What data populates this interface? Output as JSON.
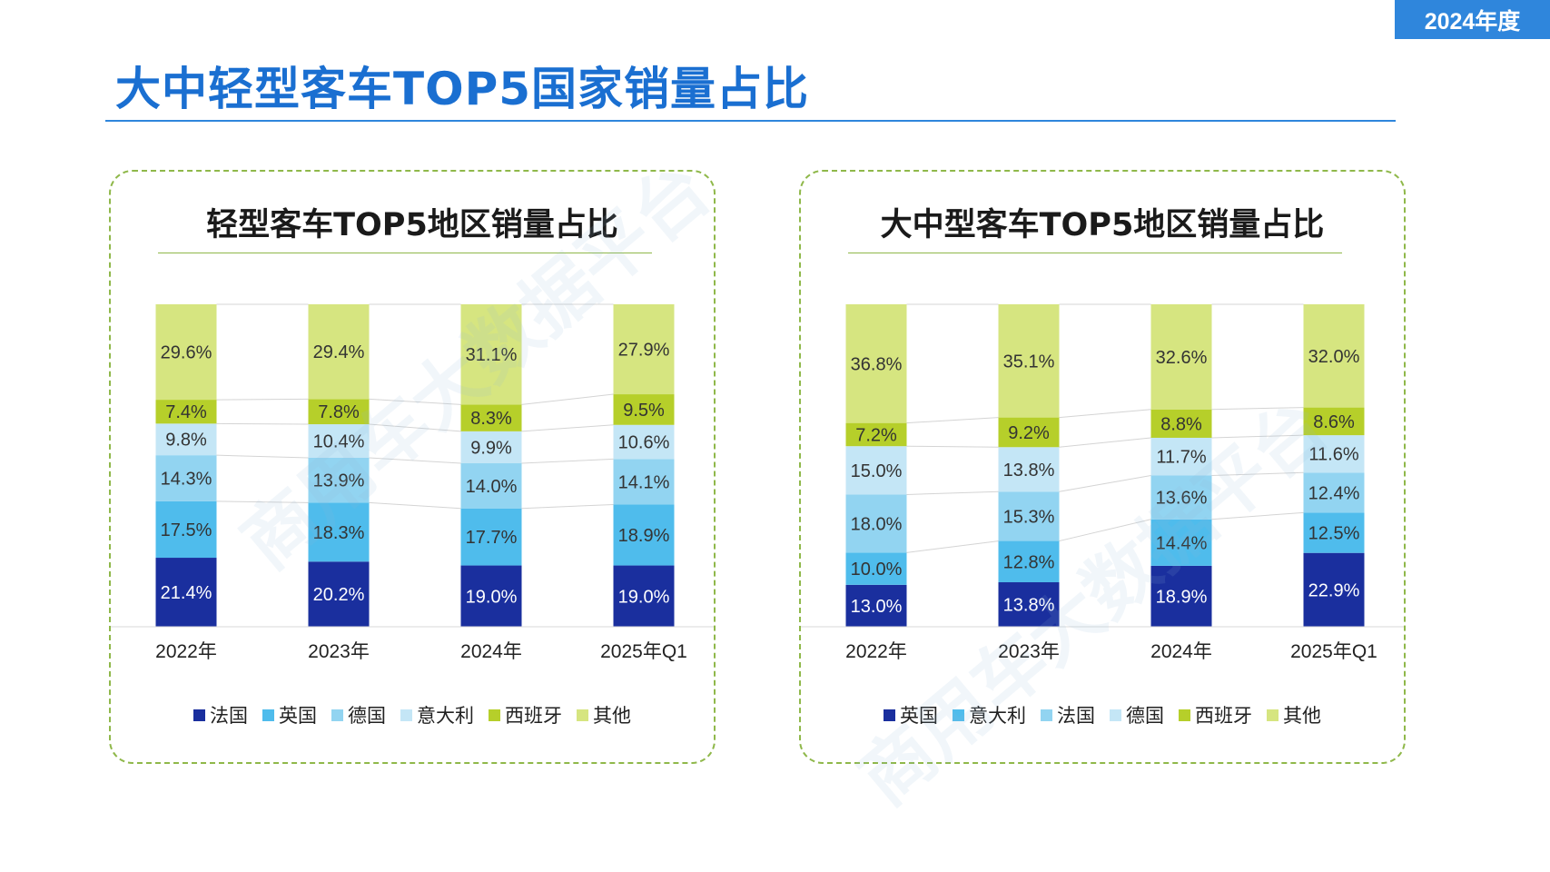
{
  "badge": {
    "year": "2024年度"
  },
  "page": {
    "title": "大中轻型客车TOP5国家销量占比"
  },
  "watermark": {
    "text": "商用车大数据平台"
  },
  "chart_data": [
    {
      "type": "bar",
      "stacked": true,
      "title": "轻型客车TOP5地区销量占比",
      "categories": [
        "2022年",
        "2023年",
        "2024年",
        "2025年Q1"
      ],
      "ylim": [
        0,
        100
      ],
      "series": [
        {
          "name": "法国",
          "color": "#1a2f9e",
          "values": [
            21.4,
            20.2,
            19.0,
            19.0
          ]
        },
        {
          "name": "英国",
          "color": "#4fbcec",
          "values": [
            17.5,
            18.3,
            17.7,
            18.9
          ]
        },
        {
          "name": "德国",
          "color": "#92d4f1",
          "values": [
            14.3,
            13.9,
            14.0,
            14.1
          ]
        },
        {
          "name": "意大利",
          "color": "#c4e6f6",
          "values": [
            9.8,
            10.4,
            9.9,
            10.6
          ]
        },
        {
          "name": "西班牙",
          "color": "#b6cf2a",
          "values": [
            7.4,
            7.8,
            8.3,
            9.5
          ]
        },
        {
          "name": "其他",
          "color": "#d6e580",
          "values": [
            29.6,
            29.4,
            31.1,
            27.9
          ]
        }
      ],
      "value_labels": [
        [
          "21.4%",
          "20.2%",
          "19.0%",
          "19.0%"
        ],
        [
          "17.5%",
          "18.3%",
          "17.7%",
          "18.9%"
        ],
        [
          "14.3%",
          "13.9%",
          "14.0%",
          "14.1%"
        ],
        [
          "9.8%",
          "10.4%",
          "9.9%",
          "10.6%"
        ],
        [
          "7.4%",
          "7.8%",
          "8.3%",
          "9.5%"
        ],
        [
          "29.6%",
          "29.4%",
          "31.1%",
          "27.9%"
        ]
      ]
    },
    {
      "type": "bar",
      "stacked": true,
      "title": "大中型客车TOP5地区销量占比",
      "categories": [
        "2022年",
        "2023年",
        "2024年",
        "2025年Q1"
      ],
      "ylim": [
        0,
        100
      ],
      "series": [
        {
          "name": "英国",
          "color": "#1a2f9e",
          "values": [
            13.0,
            13.8,
            18.9,
            22.9
          ]
        },
        {
          "name": "意大利",
          "color": "#4fbcec",
          "values": [
            10.0,
            12.8,
            14.4,
            12.5
          ]
        },
        {
          "name": "法国",
          "color": "#92d4f1",
          "values": [
            18.0,
            15.3,
            13.6,
            12.4
          ]
        },
        {
          "name": "德国",
          "color": "#c4e6f6",
          "values": [
            15.0,
            13.8,
            11.7,
            11.6
          ]
        },
        {
          "name": "西班牙",
          "color": "#b6cf2a",
          "values": [
            7.2,
            9.2,
            8.8,
            8.6
          ]
        },
        {
          "name": "其他",
          "color": "#d6e580",
          "values": [
            36.8,
            35.1,
            32.6,
            32.0
          ]
        }
      ],
      "value_labels": [
        [
          "13.0%",
          "13.8%",
          "18.9%",
          "22.9%"
        ],
        [
          "10.0%",
          "12.8%",
          "14.4%",
          "12.5%"
        ],
        [
          "18.0%",
          "15.3%",
          "13.6%",
          "12.4%"
        ],
        [
          "15.0%",
          "13.8%",
          "11.7%",
          "11.6%"
        ],
        [
          "7.2%",
          "9.2%",
          "8.8%",
          "8.6%"
        ],
        [
          "36.8%",
          "35.1%",
          "32.6%",
          "32.0%"
        ]
      ]
    }
  ]
}
